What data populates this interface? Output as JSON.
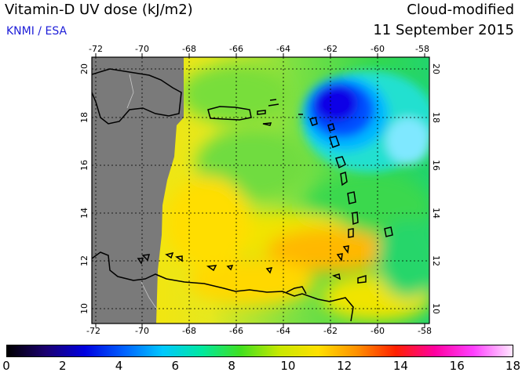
{
  "header": {
    "title": "Vitamin-D UV dose (kJ/m2)",
    "org": "KNMI / ESA",
    "mode": "Cloud-modified",
    "date": "11 September 2015"
  },
  "map": {
    "lon_ticks_top": [
      "-72",
      "-70",
      "-68",
      "-66",
      "-64",
      "-62",
      "-60",
      "-58"
    ],
    "lon_ticks_bottom": [
      "-72",
      "-70",
      "-68",
      "-66",
      "-64",
      "-62",
      "-60",
      "-58"
    ],
    "lat_ticks": [
      "20",
      "18",
      "16",
      "14",
      "12",
      "10"
    ]
  },
  "colorbar": {
    "ticks": [
      "0",
      "2",
      "4",
      "6",
      "8",
      "10",
      "12",
      "14",
      "16",
      "18"
    ],
    "colors": [
      "#000000",
      "#1a0070",
      "#0000e0",
      "#0060ff",
      "#00c8ff",
      "#00e8a0",
      "#40e020",
      "#c8e800",
      "#ffe000",
      "#ff9000",
      "#ff2000",
      "#ff00a0",
      "#ff40ff",
      "#ffe8ff"
    ]
  }
}
